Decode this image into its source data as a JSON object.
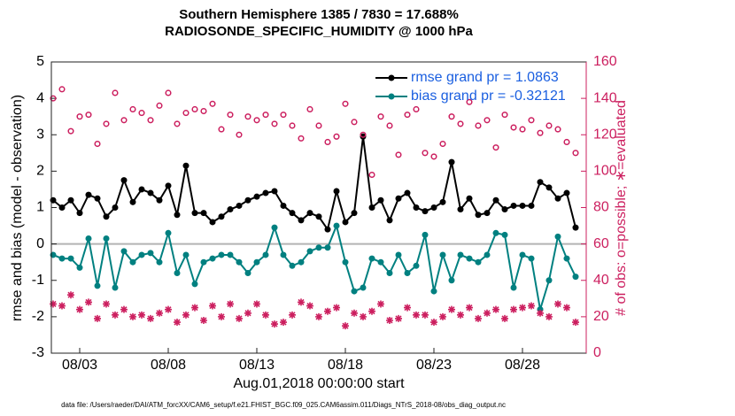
{
  "chart_data": {
    "type": "line",
    "title": "Southern Hemisphere 1385 / 7830 = 17.688%",
    "subtitle": "RADIOSONDE_SPECIFIC_HUMIDITY @ 1000 hPa",
    "x_label": "Aug.01,2018 00:00:00 start",
    "y_label": "rmse and bias (model - observation)",
    "y2_label": "# of obs: o=possible; ∗=evaluated",
    "footnote": "data file: /Users/raeder/DAI/ATM_forcXX/CAM6_setup/f.e21.FHIST_BGC.f09_025.CAM6assim.011/Diags_NTrS_2018-08/obs_diag_output.nc",
    "xlim": [
      0.4,
      30.6
    ],
    "xticks": [
      {
        "value": 2,
        "label": "08/03"
      },
      {
        "value": 7,
        "label": "08/08"
      },
      {
        "value": 12,
        "label": "08/13"
      },
      {
        "value": 17,
        "label": "08/18"
      },
      {
        "value": 22,
        "label": "08/23"
      },
      {
        "value": 27,
        "label": "08/28"
      }
    ],
    "ylim": [
      -3,
      5
    ],
    "yticks": [
      -3,
      -2,
      -1,
      0,
      1,
      2,
      3,
      4,
      5
    ],
    "y2lim": [
      0,
      160
    ],
    "y2ticks": [
      0,
      20,
      40,
      60,
      80,
      100,
      120,
      140,
      160
    ],
    "y2_color": "#cc1f5f",
    "reference_line": 0,
    "x": [
      0.5,
      1,
      1.5,
      2,
      2.5,
      3,
      3.5,
      4,
      4.5,
      5,
      5.5,
      6,
      6.5,
      7,
      7.5,
      8,
      8.5,
      9,
      9.5,
      10,
      10.5,
      11,
      11.5,
      12,
      12.5,
      13,
      13.5,
      14,
      14.5,
      15,
      15.5,
      16,
      16.5,
      17,
      17.5,
      18,
      18.5,
      19,
      19.5,
      20,
      20.5,
      21,
      21.5,
      22,
      22.5,
      23,
      23.5,
      24,
      24.5,
      25,
      25.5,
      26,
      26.5,
      27,
      27.5,
      28,
      28.5,
      29,
      29.5,
      30
    ],
    "series": [
      {
        "name": "rmse grand pr = 1.0863",
        "color": "#000000",
        "marker": "dot",
        "line": true,
        "values": [
          1.2,
          1.0,
          1.2,
          0.85,
          1.35,
          1.25,
          0.75,
          1.0,
          1.75,
          1.15,
          1.5,
          1.4,
          1.2,
          1.6,
          0.8,
          2.15,
          0.85,
          0.85,
          0.6,
          0.75,
          0.95,
          1.05,
          1.2,
          1.3,
          1.4,
          1.45,
          1.05,
          0.85,
          0.65,
          0.85,
          0.75,
          0.4,
          1.45,
          0.6,
          0.85,
          2.95,
          1.0,
          1.2,
          0.65,
          1.25,
          1.4,
          1.0,
          0.9,
          1.0,
          1.15,
          2.25,
          0.95,
          1.25,
          0.8,
          0.85,
          1.2,
          0.95,
          1.05,
          1.05,
          1.05,
          1.7,
          1.55,
          1.25,
          1.4,
          0.45
        ]
      },
      {
        "name": "bias grand pr = -0.32121",
        "color": "#008080",
        "marker": "dot",
        "line": true,
        "values": [
          -0.3,
          -0.4,
          -0.4,
          -0.65,
          0.15,
          -1.15,
          0.15,
          -1.2,
          -0.2,
          -0.5,
          -0.3,
          -0.25,
          -0.5,
          0.3,
          -0.8,
          -0.3,
          -1.1,
          -0.5,
          -0.4,
          -0.3,
          -0.3,
          -0.5,
          -0.8,
          -0.5,
          -0.3,
          0.45,
          -0.3,
          -0.6,
          -0.5,
          -0.2,
          -0.1,
          -0.1,
          0.5,
          -0.5,
          -1.3,
          -1.2,
          -0.4,
          -0.5,
          -0.8,
          -0.3,
          -0.8,
          -0.6,
          0.25,
          -1.3,
          -0.3,
          -1.0,
          -0.3,
          -0.4,
          -0.5,
          -0.3,
          0.3,
          0.25,
          -1.2,
          -0.3,
          -0.4,
          -1.8,
          -1.0,
          0.2,
          -0.4,
          -0.9
        ]
      },
      {
        "color": "#cc1f5f",
        "marker": "circle",
        "axis": "y2",
        "values": [
          140,
          145,
          122,
          130,
          131,
          115,
          126,
          143,
          128,
          134,
          132,
          128,
          136,
          143,
          126,
          132,
          134,
          133,
          137,
          123,
          131,
          120,
          130,
          128,
          131,
          126,
          131,
          125,
          118,
          134,
          125,
          116,
          119,
          137,
          127,
          120,
          98,
          130,
          125,
          109,
          131,
          134,
          110,
          108,
          115,
          130,
          126,
          138,
          125,
          128,
          113,
          131,
          124,
          123,
          128,
          121,
          125,
          123,
          116,
          110
        ]
      },
      {
        "color": "#cc1f5f",
        "marker": "asterisk",
        "axis": "y2",
        "values": [
          27,
          26,
          32,
          24,
          28,
          19,
          27,
          21,
          24,
          20,
          21,
          19,
          22,
          24,
          17,
          21,
          25,
          18,
          26,
          20,
          27,
          19,
          22,
          27,
          21,
          16,
          17,
          21,
          28,
          26,
          20,
          23,
          25,
          15,
          22,
          20,
          23,
          27,
          18,
          19,
          25,
          21,
          21,
          17,
          20,
          24,
          21,
          25,
          19,
          22,
          24,
          19,
          24,
          25,
          26,
          22,
          20,
          27,
          25,
          17
        ]
      }
    ]
  }
}
